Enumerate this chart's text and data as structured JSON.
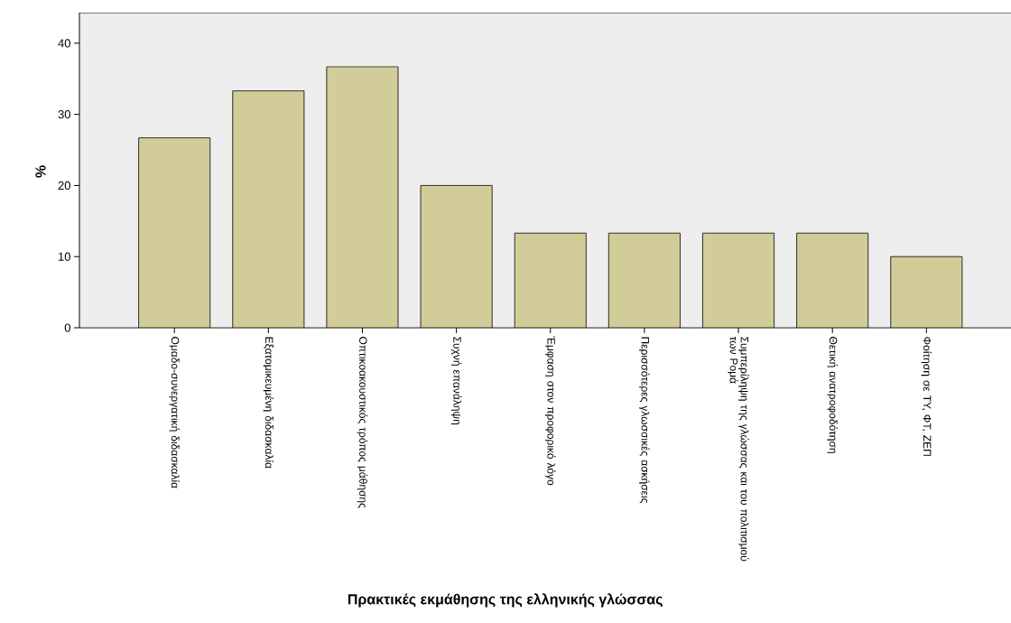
{
  "chart_data": {
    "type": "bar",
    "xlabel": "Πρακτικές εκμάθησης της ελληνικής γλώσσας",
    "ylabel": "%",
    "categories": [
      "Ομαδο-συνεργατική διδασκαλία",
      "Εξατομικευμένη διδασκαλία",
      "Οπτικοακουστικός τρόπος μάθησης",
      "Συχνή επανάληψη",
      "Έμφαση στον προφορικό λόγο",
      "Περισσότερες γλωσσικές ασκήσεις",
      "Συμπερίληψη της γλώσσας και του πολιτισμού των Ρομά",
      "Θετική ανατροφοδότηση",
      "Φοίτηση σε ΤΥ, ΦΤ, ΖΕΠ"
    ],
    "values": [
      26.7,
      33.3,
      36.7,
      20,
      13.3,
      13.3,
      13.3,
      13.3,
      10
    ],
    "color": "#d2cc99",
    "ylim": [
      0,
      44.3
    ],
    "yticks": [
      0,
      10,
      20,
      30,
      40
    ],
    "grid": false
  }
}
